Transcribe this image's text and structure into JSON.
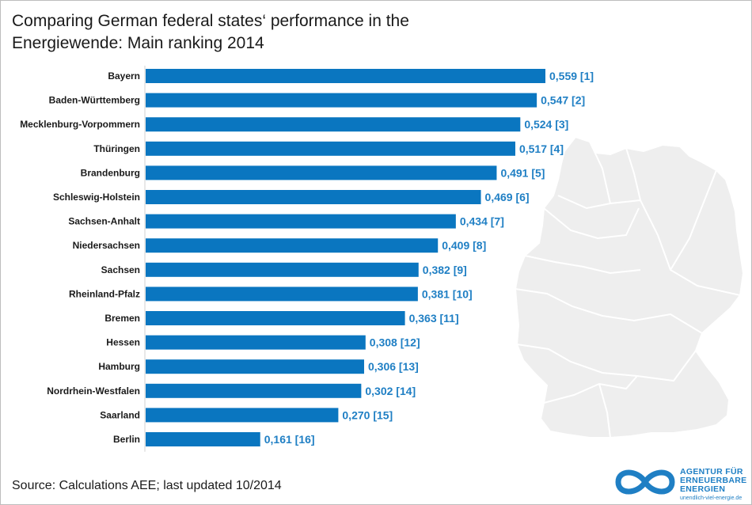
{
  "title_lines": [
    "Comparing German federal states‘ performance in the",
    "Energiewende: Main ranking 2014"
  ],
  "source": "Source: Calculations AEE; last updated 10/2014",
  "logo": {
    "line1": "AGENTUR FÜR",
    "line2": "ERNEUERBARE",
    "line3": "ENERGIEN",
    "url": "unendlich-viel-energie.de"
  },
  "colors": {
    "bar": "#0a76c0",
    "value_label": "#1f7fc4",
    "map": "#eeeeee",
    "map_border": "#ffffff"
  },
  "chart_data": {
    "type": "bar",
    "orientation": "horizontal",
    "title": "Comparing German federal states‘ performance in the Energiewende: Main ranking 2014",
    "categories": [
      "Bayern",
      "Baden-Württemberg",
      "Mecklenburg-Vorpommern",
      "Thüringen",
      "Brandenburg",
      "Schleswig-Holstein",
      "Sachsen-Anhalt",
      "Niedersachsen",
      "Sachsen",
      "Rheinland-Pfalz",
      "Bremen",
      "Hessen",
      "Hamburg",
      "Nordrhein-Westfalen",
      "Saarland",
      "Berlin"
    ],
    "values": [
      0.559,
      0.547,
      0.524,
      0.517,
      0.491,
      0.469,
      0.434,
      0.409,
      0.382,
      0.381,
      0.363,
      0.308,
      0.306,
      0.302,
      0.27,
      0.161
    ],
    "value_labels": [
      "0,559",
      "0,547",
      "0,524",
      "0,517",
      "0,491",
      "0,469",
      "0,434",
      "0,409",
      "0,382",
      "0,381",
      "0,363",
      "0,308",
      "0,306",
      "0,302",
      "0,270",
      "0,161"
    ],
    "ranks": [
      "[1]",
      "[2]",
      "[3]",
      "[4]",
      "[5]",
      "[6]",
      "[7]",
      "[8]",
      "[9]",
      "[10]",
      "[11]",
      "[12]",
      "[13]",
      "[14]",
      "[15]",
      "[16]"
    ],
    "xlim": [
      0,
      0.559
    ],
    "grid": false,
    "legend": "none"
  }
}
